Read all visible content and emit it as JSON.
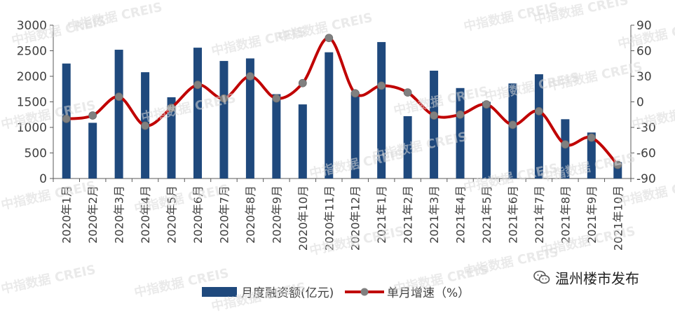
{
  "watermark": "中指数据 CREIS",
  "brand": {
    "text": "温州楼市发布",
    "icon": "wechat-icon"
  },
  "colors": {
    "bar": "#1F497D",
    "line": "#C00000",
    "marker": "#808080",
    "axis": "#595959",
    "text": "#404040"
  },
  "chart_data": {
    "type": "bar",
    "categories": [
      "2020年1月",
      "2020年2月",
      "2020年3月",
      "2020年4月",
      "2020年5月",
      "2020年6月",
      "2020年7月",
      "2020年8月",
      "2020年9月",
      "2020年10月",
      "2020年11月",
      "2020年12月",
      "2021年1月",
      "2021年2月",
      "2021年3月",
      "2021年4月",
      "2021年5月",
      "2021年6月",
      "2021年7月",
      "2021年8月",
      "2021年9月",
      "2021年10月"
    ],
    "series": [
      {
        "name": "月度融资额(亿元)",
        "type": "bar",
        "axis": "left",
        "values": [
          2250,
          1090,
          2520,
          2080,
          1590,
          2560,
          2300,
          2350,
          1650,
          1450,
          2470,
          1690,
          2670,
          1220,
          2110,
          1770,
          1500,
          1860,
          2040,
          1160,
          900,
          320
        ]
      },
      {
        "name": "单月增速（%）",
        "type": "line",
        "axis": "right",
        "values": [
          -20,
          -16,
          6,
          -28,
          -7,
          20,
          4,
          30,
          4,
          22,
          75,
          10,
          19,
          11,
          -16,
          -15,
          -3,
          -27,
          -11,
          -50,
          -42,
          -74
        ]
      }
    ],
    "ylim_left": [
      0,
      3000
    ],
    "yticks_left": [
      0,
      500,
      1000,
      1500,
      2000,
      2500,
      3000
    ],
    "ylim_right": [
      -90,
      90
    ],
    "yticks_right": [
      -90,
      -60,
      -30,
      0,
      30,
      60,
      90
    ],
    "legend": "bottom"
  }
}
